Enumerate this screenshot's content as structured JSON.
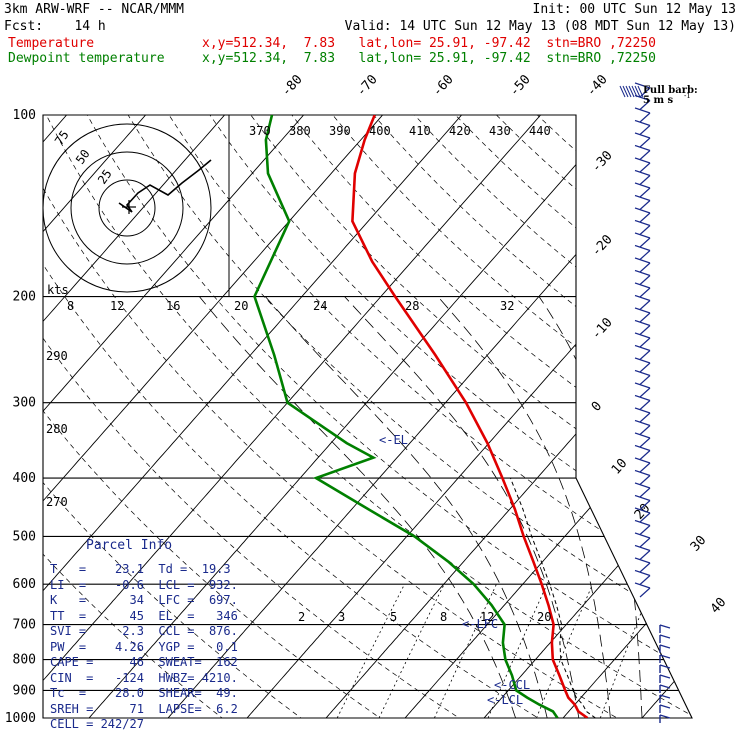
{
  "header": {
    "left1": "3km ARW-WRF -- NCAR/MMM",
    "left2": "Fcst:    14 h",
    "right1": "Init: 00 UTC Sun 12 May 13",
    "right2": "Valid: 14 UTC Sun 12 May 13 (08 MDT Sun 12 May 13)",
    "temp_label": "Temperature",
    "temp_info": "x,y=512.34,  7.83   lat,lon= 25.91, -97.42  stn=BRO ,72250",
    "dew_label": "Dewpoint temperature",
    "dew_info": "x,y=512.34,  7.83   lat,lon= 25.91, -97.42  stn=BRO ,72250",
    "temp_color": "#e00000",
    "dew_color": "#008000"
  },
  "barb_legend": {
    "line1": "Full barb:",
    "line2": "5 m s",
    "sup": "-1"
  },
  "hodograph": {
    "units": "kts",
    "ring_labels": [
      "25",
      "50",
      "75"
    ]
  },
  "parcel_info": {
    "title": "Parcel Info",
    "rows": [
      "T   =    23.1  Td =  19.3",
      "LI  =    -0.6  LCL =  932.",
      "K   =      34  LFC =  697.",
      "TT  =      45  EL  =   346",
      "SVI =     2.3  CCL =  876.",
      "PW  =    4.26  YGP =   0.1",
      "CAPE =     46  SWEAT=  162",
      "CIN  =   -124  HWBZ= 4210.",
      "Tc  =    28.0  SHEAR=  49.",
      "SREH =     71  LAPSE=  6.2",
      "CELL = 242/27"
    ]
  },
  "chart_data": {
    "type": "skew-t log-p sounding",
    "y_axis": {
      "quantity": "pressure",
      "scale": "log",
      "range": [
        1000,
        100
      ],
      "tick_labels": [
        "100",
        "200",
        "300",
        "400",
        "500",
        "600",
        "700",
        "800",
        "900",
        "1000"
      ]
    },
    "isotherm_labels": [
      "-80",
      "-70",
      "-60",
      "-50",
      "-40",
      "-30",
      "-20",
      "-10",
      "0",
      "10",
      "20",
      "30",
      "40"
    ],
    "theta_labels": [
      "370",
      "380",
      "390",
      "400",
      "410",
      "420",
      "430",
      "440"
    ],
    "theta_labels_left": [
      "290",
      "280",
      "270"
    ],
    "mixing_ratio_labels_upper": [
      "8",
      "12",
      "16",
      "20",
      "24",
      "28",
      "32"
    ],
    "mixing_ratio_labels_lower": [
      "2",
      "3",
      "5",
      "8",
      "12",
      "20"
    ],
    "annotations": [
      "<-EL",
      "<-LFC",
      "<-CCL",
      "<-LCL"
    ],
    "series": [
      {
        "name": "Temperature",
        "points": [
          [
            1000,
            23.1
          ],
          [
            975,
            21.2
          ],
          [
            950,
            20.0
          ],
          [
            925,
            18.4
          ],
          [
            900,
            17.2
          ],
          [
            850,
            14.8
          ],
          [
            800,
            12.2
          ],
          [
            750,
            10.2
          ],
          [
            700,
            8.4
          ],
          [
            650,
            5.6
          ],
          [
            600,
            2.4
          ],
          [
            550,
            -1.2
          ],
          [
            500,
            -5.2
          ],
          [
            450,
            -9.4
          ],
          [
            400,
            -14.4
          ],
          [
            350,
            -20.2
          ],
          [
            300,
            -27.4
          ],
          [
            250,
            -36.6
          ],
          [
            200,
            -48.2
          ],
          [
            175,
            -55.0
          ],
          [
            150,
            -62.0
          ],
          [
            125,
            -67.0
          ],
          [
            110,
            -69.5
          ],
          [
            100,
            -71.0
          ]
        ]
      },
      {
        "name": "Dewpoint temperature",
        "points": [
          [
            1000,
            19.3
          ],
          [
            975,
            18.0
          ],
          [
            950,
            15.5
          ],
          [
            925,
            13.2
          ],
          [
            900,
            11.0
          ],
          [
            850,
            8.8
          ],
          [
            800,
            6.2
          ],
          [
            750,
            4.0
          ],
          [
            700,
            2.2
          ],
          [
            650,
            -1.6
          ],
          [
            600,
            -6.2
          ],
          [
            550,
            -12.0
          ],
          [
            500,
            -19.0
          ],
          [
            450,
            -28.0
          ],
          [
            400,
            -38.0
          ],
          [
            370,
            -33.0
          ],
          [
            350,
            -38.0
          ],
          [
            300,
            -50.0
          ],
          [
            250,
            -57.0
          ],
          [
            200,
            -66.0
          ],
          [
            150,
            -70.0
          ],
          [
            125,
            -78.0
          ],
          [
            110,
            -82.0
          ],
          [
            100,
            -84.0
          ]
        ]
      }
    ],
    "parcel_dashed": true
  }
}
